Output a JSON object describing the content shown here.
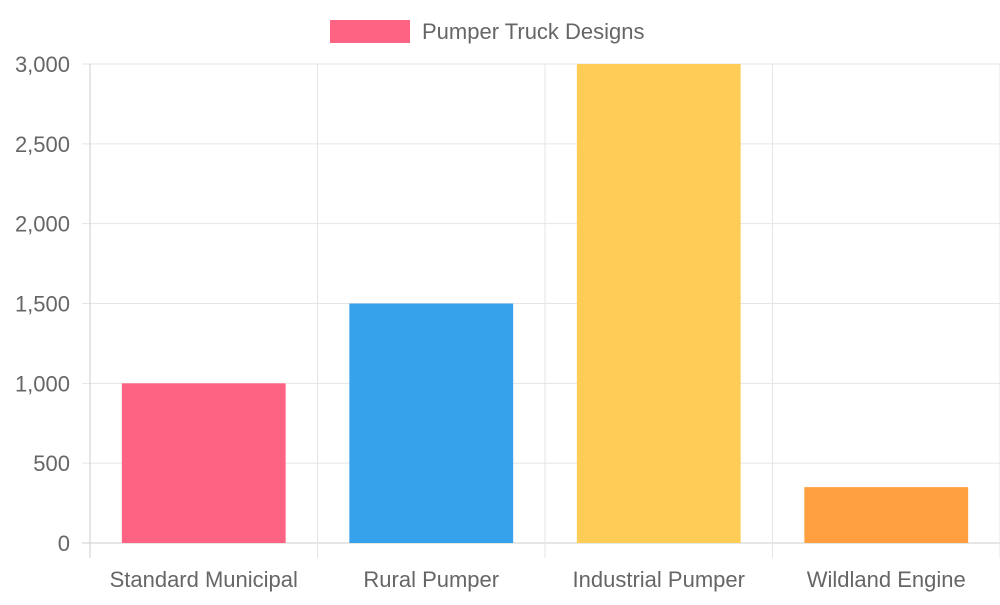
{
  "chart_data": {
    "type": "bar",
    "title": "",
    "xlabel": "",
    "ylabel": "",
    "legend": {
      "position": "top",
      "entries": [
        {
          "label": "Pumper Truck Designs",
          "color": "#ff6384"
        }
      ]
    },
    "categories": [
      "Standard Municipal",
      "Rural Pumper",
      "Industrial Pumper",
      "Wildland Engine"
    ],
    "series": [
      {
        "name": "Pumper Truck Designs",
        "values": [
          1000,
          1500,
          3000,
          350
        ]
      }
    ],
    "colors": [
      "#ff6384",
      "#36a2eb",
      "#ffcd56",
      "#ff9f40"
    ],
    "ylim": [
      0,
      3000
    ],
    "yticks": [
      0,
      500,
      1000,
      1500,
      2000,
      2500,
      3000
    ],
    "ytick_labels": [
      "0",
      "500",
      "1,000",
      "1,500",
      "2,000",
      "2,500",
      "3,000"
    ],
    "grid": true
  }
}
